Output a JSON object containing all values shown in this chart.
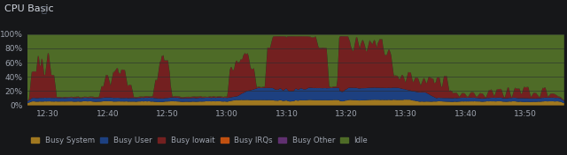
{
  "title": "CPU Basic",
  "title_icon": "ⓘ",
  "background_color": "#161719",
  "plot_bg_color": "#111217",
  "grid_color": "#282b30",
  "text_color": "#9fa5b0",
  "series_colors": {
    "idle": "#4e6b27",
    "iowait": "#732020",
    "user": "#1d4080",
    "system": "#a07820",
    "irqs": "#c05010",
    "other": "#603070"
  },
  "legend": [
    {
      "label": "Busy System",
      "color": "#a07820"
    },
    {
      "label": "Busy User",
      "color": "#1d4080"
    },
    {
      "label": "Busy Iowait",
      "color": "#732020"
    },
    {
      "label": "Busy IRQs",
      "color": "#c05010"
    },
    {
      "label": "Busy Other",
      "color": "#603070"
    },
    {
      "label": "Idle",
      "color": "#4e6b27"
    }
  ],
  "y_ticks": [
    0,
    20,
    40,
    60,
    80,
    100
  ],
  "y_tick_labels": [
    "0%",
    "20%",
    "40%",
    "60%",
    "80%",
    "100%"
  ],
  "x_tick_positions": [
    3.5,
    13.5,
    23.5,
    33.5,
    43.5,
    53.5,
    63.5,
    73.5,
    83.5
  ],
  "x_tick_labels": [
    "12:30",
    "12:40",
    "12:50",
    "13:00",
    "13:10",
    "13:20",
    "13:30",
    "13:40",
    "13:50"
  ]
}
